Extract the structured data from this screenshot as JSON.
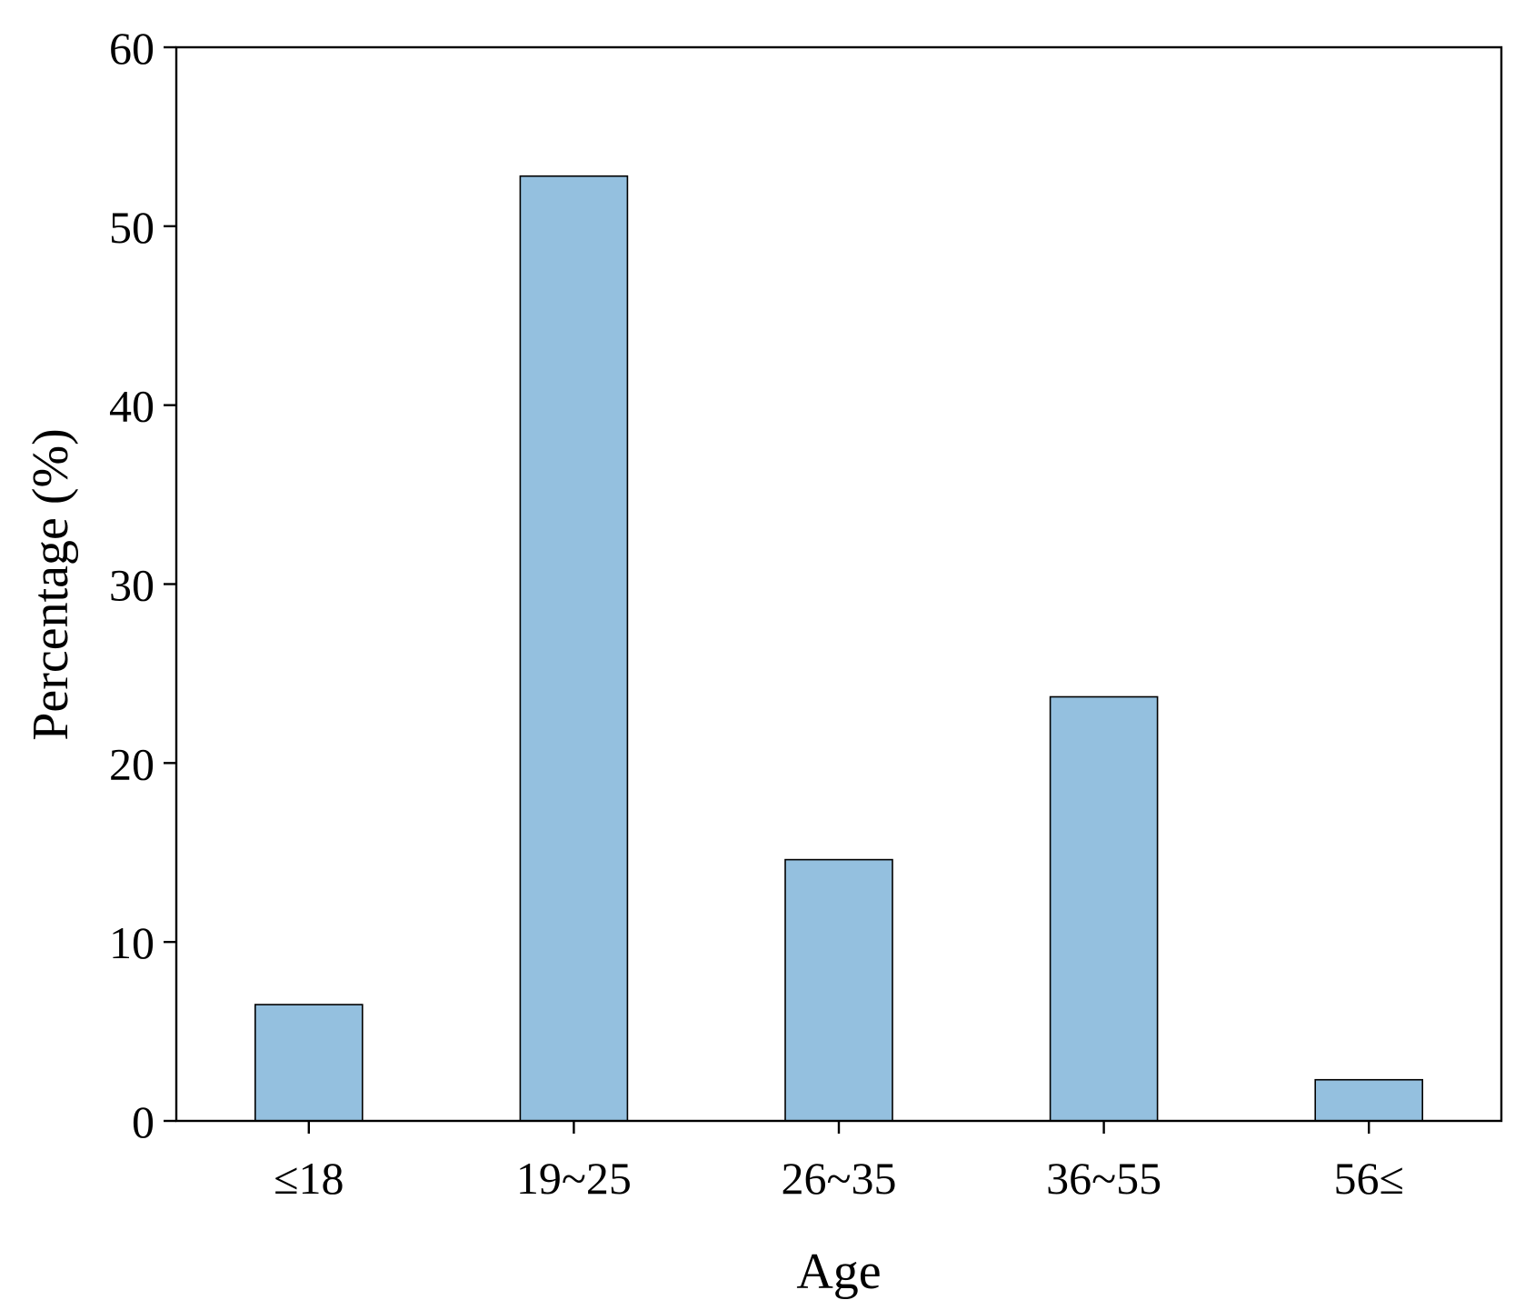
{
  "chart_data": {
    "type": "bar",
    "title": "",
    "xlabel": "Age",
    "ylabel": "Percentage (%)",
    "categories": [
      "≤18",
      "19~25",
      "26~35",
      "36~55",
      "56≤"
    ],
    "values": [
      6.5,
      52.8,
      14.6,
      23.7,
      2.3
    ],
    "ylim": [
      0,
      60
    ],
    "yticks": [
      0,
      10,
      20,
      30,
      40,
      50,
      60
    ],
    "grid": false,
    "legend": "none",
    "colors": {
      "bar_fill": "#94C0DF",
      "bar_stroke": "#000000",
      "axis": "#000000",
      "text": "#000000",
      "background": "#FFFFFF"
    }
  }
}
